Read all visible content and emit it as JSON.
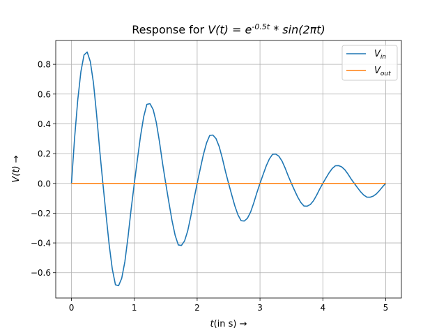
{
  "chart_data": {
    "type": "line",
    "title": {
      "prefix": "Response for ",
      "formula": "V(t) = e^{-0.5t} * sin(2πt)"
    },
    "xlabel": {
      "var": "t",
      "unit": "(in s)",
      "arrow": "→"
    },
    "ylabel": {
      "var": "V(t)",
      "arrow": "→"
    },
    "xlim": [
      -0.25,
      5.25
    ],
    "ylim": [
      -0.77,
      0.96
    ],
    "x_ticks": [
      0,
      1,
      2,
      3,
      4,
      5
    ],
    "x_tick_labels": [
      "0",
      "1",
      "2",
      "3",
      "4",
      "5"
    ],
    "y_ticks": [
      -0.6,
      -0.4,
      -0.2,
      0.0,
      0.2,
      0.4,
      0.6,
      0.8
    ],
    "y_tick_labels": [
      "−0.6",
      "−0.4",
      "−0.2",
      "0.0",
      "0.2",
      "0.4",
      "0.6",
      "0.8"
    ],
    "grid": true,
    "legend_position": "top-right",
    "series": [
      {
        "name": "V_in",
        "label": {
          "base": "V",
          "sub": "in"
        },
        "color": "#1f77b4",
        "x": [
          0,
          0.05,
          0.1,
          0.15,
          0.2,
          0.25,
          0.3,
          0.35,
          0.4,
          0.45,
          0.5,
          0.55,
          0.6,
          0.65,
          0.7,
          0.75,
          0.8,
          0.85,
          0.9,
          0.95,
          1.0,
          1.05,
          1.1,
          1.15,
          1.2,
          1.25,
          1.3,
          1.35,
          1.4,
          1.45,
          1.5,
          1.55,
          1.6,
          1.65,
          1.7,
          1.75,
          1.8,
          1.85,
          1.9,
          1.95,
          2.0,
          2.05,
          2.1,
          2.15,
          2.2,
          2.25,
          2.3,
          2.35,
          2.4,
          2.45,
          2.5,
          2.55,
          2.6,
          2.65,
          2.7,
          2.75,
          2.8,
          2.85,
          2.9,
          2.95,
          3.0,
          3.05,
          3.1,
          3.15,
          3.2,
          3.25,
          3.3,
          3.35,
          3.4,
          3.45,
          3.5,
          3.55,
          3.6,
          3.65,
          3.7,
          3.75,
          3.8,
          3.85,
          3.9,
          3.95,
          4.0,
          4.05,
          4.1,
          4.15,
          4.2,
          4.25,
          4.3,
          4.35,
          4.4,
          4.45,
          4.5,
          4.55,
          4.6,
          4.65,
          4.7,
          4.75,
          4.8,
          4.85,
          4.9,
          4.95,
          5.0
        ],
        "values": [
          0.0,
          0.3053,
          0.5593,
          0.7498,
          0.8628,
          0.8825,
          0.8179,
          0.6751,
          0.4626,
          0.2199,
          0.0,
          -0.2096,
          -0.4122,
          -0.5761,
          -0.6812,
          -0.6873,
          -0.637,
          -0.5255,
          -0.36,
          -0.1712,
          0.0,
          0.1632,
          0.3209,
          0.4487,
          0.531,
          0.5353,
          0.4961,
          0.4093,
          0.2806,
          0.1335,
          0.0,
          -0.1271,
          -0.25,
          -0.3494,
          -0.4134,
          -0.4169,
          -0.3864,
          -0.3188,
          -0.2186,
          -0.1039,
          0.0,
          0.099,
          0.1947,
          0.2721,
          0.3219,
          0.3247,
          0.3009,
          0.2483,
          0.1702,
          0.081,
          0.0,
          -0.0771,
          -0.1516,
          -0.2119,
          -0.2507,
          -0.2529,
          -0.2343,
          -0.1934,
          -0.1325,
          -0.063,
          0.0,
          0.06,
          0.1181,
          0.165,
          0.1953,
          0.197,
          0.1825,
          0.1506,
          0.1032,
          0.0491,
          0.0,
          -0.0468,
          -0.092,
          -0.1285,
          -0.1521,
          -0.1534,
          -0.1422,
          -0.1173,
          -0.0804,
          -0.0382,
          0.0,
          0.0364,
          0.0716,
          0.1001,
          0.1184,
          0.1195,
          0.1107,
          0.0914,
          0.0626,
          0.0298,
          0.0,
          -0.0283,
          -0.0558,
          -0.078,
          -0.0922,
          -0.093,
          -0.0862,
          -0.0712,
          -0.0488,
          -0.0232,
          0.0
        ]
      },
      {
        "name": "V_out",
        "label": {
          "base": "V",
          "sub": "out"
        },
        "color": "#ff7f0e",
        "x": [
          0,
          5.0
        ],
        "values": [
          0.0,
          0.0
        ]
      }
    ]
  }
}
